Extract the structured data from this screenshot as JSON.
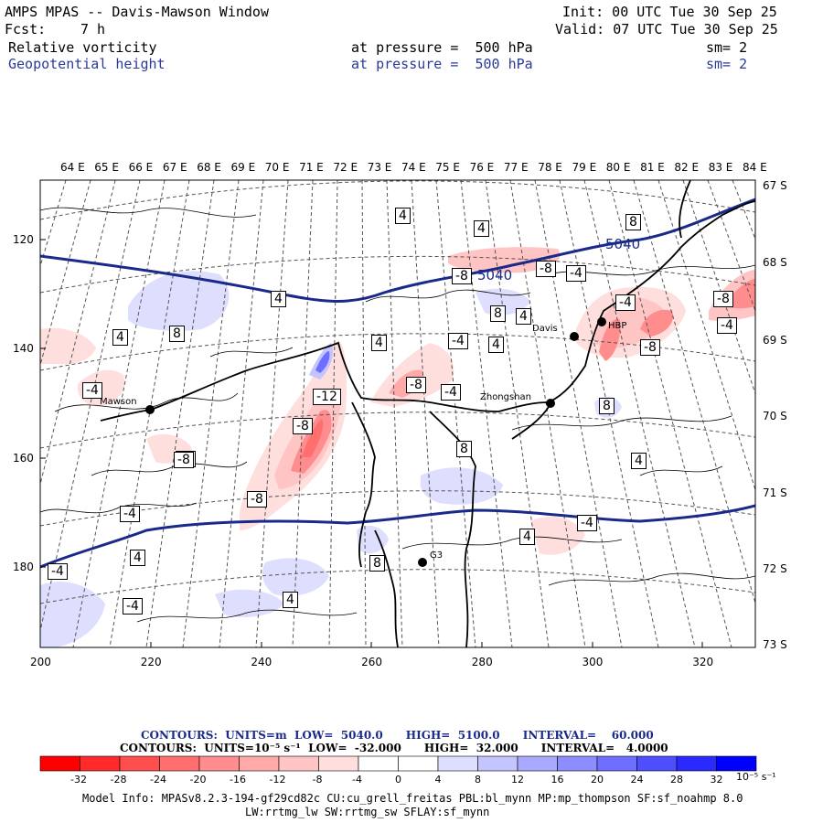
{
  "header": {
    "title": "AMPS MPAS -- Davis-Mawson Window",
    "init": "Init: 00 UTC Tue 30 Sep 25",
    "fcst_label": "Fcst:",
    "fcst_value": "7 h",
    "valid": "Valid: 07 UTC Tue 30 Sep 25",
    "field1": {
      "name": "Relative vorticity",
      "level": "at pressure =  500 hPa",
      "sm": "sm= 2"
    },
    "field2": {
      "name": "Geopotential height",
      "level": "at pressure =  500 hPa",
      "sm": "sm= 2"
    }
  },
  "map": {
    "top_longitudes": [
      "64 E",
      "65 E",
      "66 E",
      "67 E",
      "68 E",
      "69 E",
      "70 E",
      "71 E",
      "72 E",
      "73 E",
      "74 E",
      "75 E",
      "76 E",
      "77 E",
      "78 E",
      "79 E",
      "80 E",
      "81 E",
      "82 E",
      "83 E",
      "84 E"
    ],
    "right_latitudes": [
      "67 S",
      "68 S",
      "69 S",
      "70 S",
      "71 S",
      "72 S",
      "73 S"
    ],
    "left_ticks": [
      "120",
      "140",
      "160",
      "180"
    ],
    "bottom_ticks": [
      "200",
      "220",
      "240",
      "260",
      "280",
      "300",
      "320"
    ],
    "stations": [
      {
        "name": "Mawson"
      },
      {
        "name": "Davis"
      },
      {
        "name": "Zhongshan"
      },
      {
        "name": "HBP"
      },
      {
        "name": "G3"
      }
    ],
    "height_labels": [
      "5040",
      "5040"
    ],
    "vort_labels": [
      "4",
      "4",
      "8",
      "8",
      "-8",
      "-4",
      "4",
      "-8",
      "-8",
      "4",
      "8",
      "4",
      "-4",
      "-4",
      "-8",
      "4",
      "4",
      "-12",
      "-8",
      "-4",
      "-4",
      "8",
      "-4",
      "-8",
      "4",
      "8",
      "-4",
      "-4",
      "-8",
      "-4",
      "8",
      "4",
      "4",
      "4",
      "-4",
      "-8",
      "-4"
    ]
  },
  "legend": {
    "contours_line1": "CONTOURS:  UNITS=m  LOW=  5040.0      HIGH=  5100.0      INTERVAL=    60.000",
    "contours_line2": "CONTOURS:  UNITS=10⁻⁵ s⁻¹  LOW=  -32.000      HIGH=  32.000      INTERVAL=   4.0000",
    "colorbar_labels": [
      "-32",
      "-28",
      "-24",
      "-20",
      "-16",
      "-12",
      "-8",
      "-4",
      "0",
      "4",
      "8",
      "12",
      "16",
      "20",
      "24",
      "28",
      "32"
    ],
    "colorbar_units": "10⁻⁵ s⁻¹",
    "colors": [
      "#ff0000",
      "#ff2a2a",
      "#ff4e4e",
      "#ff6f6f",
      "#ff8d8d",
      "#ffa9a9",
      "#ffc4c4",
      "#ffdede",
      "#ffffff",
      "#ffffff",
      "#dedeff",
      "#c4c4ff",
      "#a9a9ff",
      "#8d8dff",
      "#6f6fff",
      "#4e4eff",
      "#2a2aff",
      "#0000ff"
    ]
  },
  "footer": {
    "line1": "Model Info: MPASv8.2.3-194-gf29cd82c CU:cu_grell_freitas PBL:bl_mynn MP:mp_thompson SF:sf_noahmp 8.0",
    "line2": "LW:rrtmg_lw SW:rrtmg_sw SFLAY:sf_mynn"
  }
}
